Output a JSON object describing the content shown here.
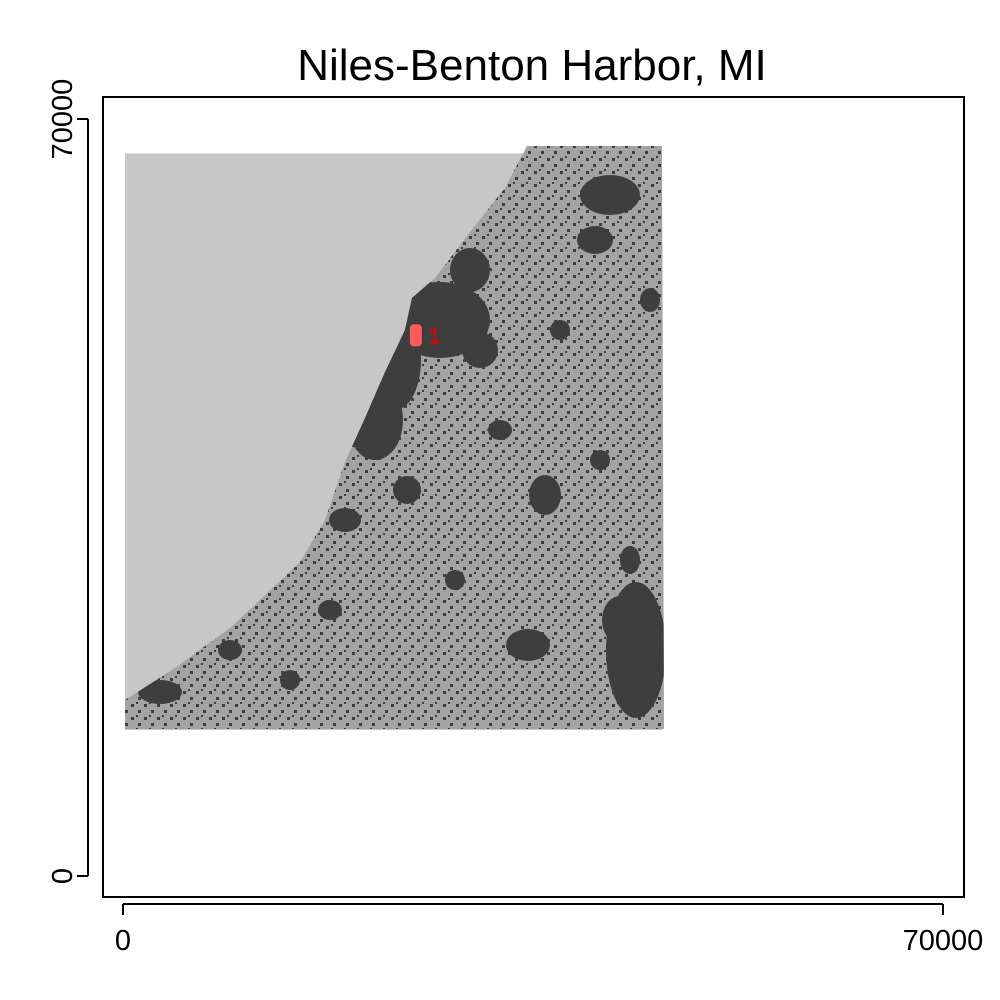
{
  "title": "Niles-Benton Harbor, MI",
  "axes": {
    "x": {
      "range": [
        0,
        70000
      ],
      "ticks": [
        {
          "value": 0,
          "label": "0"
        },
        {
          "value": 70000,
          "label": "70000"
        }
      ]
    },
    "y": {
      "range": [
        0,
        70000
      ],
      "ticks": [
        {
          "value": 0,
          "label": "0"
        },
        {
          "value": 70000,
          "label": "70000"
        }
      ]
    }
  },
  "raster_extent": {
    "x": [
      0,
      46000
    ],
    "y": [
      13500,
      67000
    ]
  },
  "marker": {
    "label": "1",
    "x": 25000,
    "y": 50000
  },
  "colors": {
    "water": "#c7c7c7",
    "land": "#a3a3a3",
    "developed": "#3e3e3e",
    "marker": "#ff5a5a",
    "marker_label": "#e00000"
  }
}
